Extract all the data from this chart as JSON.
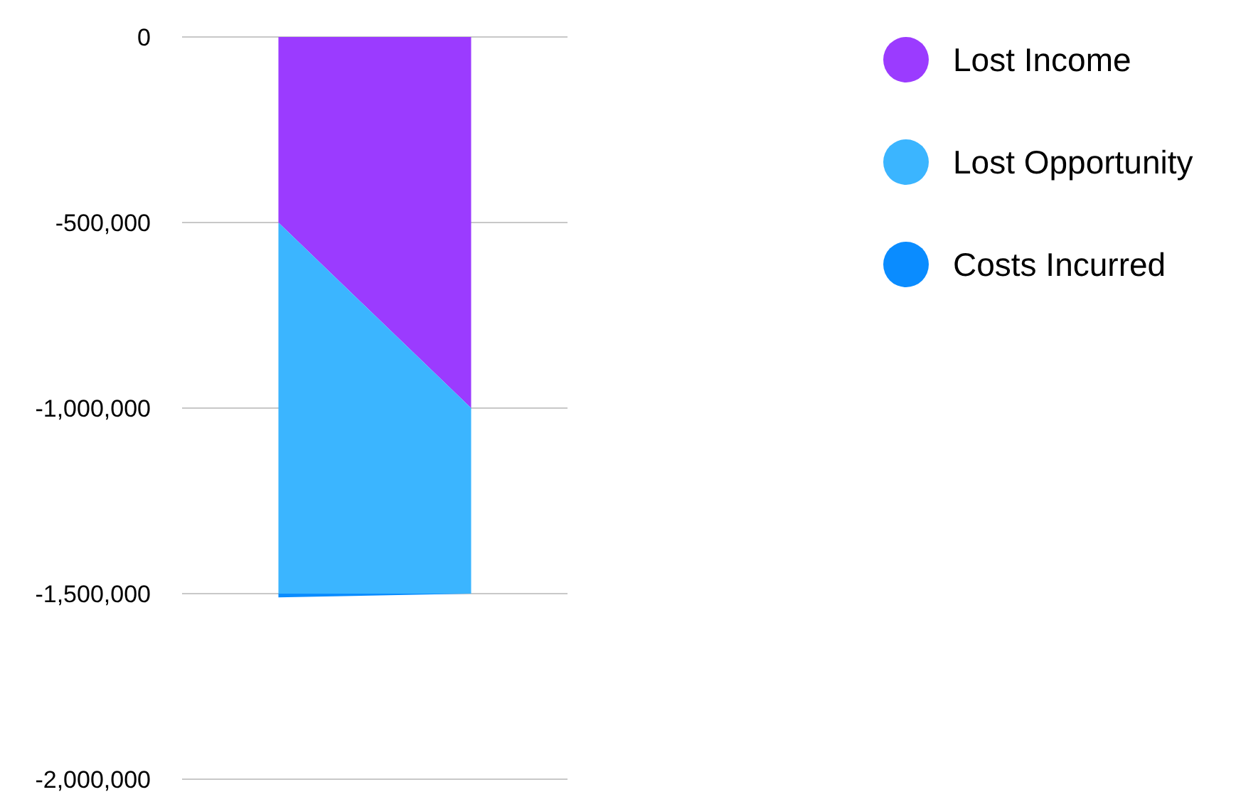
{
  "chart_data": {
    "type": "area",
    "stacked": true,
    "categories": [
      null,
      null
    ],
    "series": [
      {
        "name": "Lost Income",
        "color": "#9b3bff",
        "values": [
          -500000,
          -1000000
        ]
      },
      {
        "name": "Lost Opportunity",
        "color": "#3bb5ff",
        "values": [
          -1000000,
          -500000
        ]
      },
      {
        "name": "Costs Incurred",
        "color": "#0a8cff",
        "values": [
          -10000,
          0
        ]
      }
    ],
    "ylim": [
      -2000000,
      0
    ],
    "yticks": [
      {
        "value": -2000000,
        "label": "-2,000,000"
      },
      {
        "value": -1500000,
        "label": "-1,500,000"
      },
      {
        "value": -1000000,
        "label": "-1,000,000"
      },
      {
        "value": -500000,
        "label": "-500,000"
      },
      0
    ],
    "grid": "y",
    "legend": "top right"
  }
}
